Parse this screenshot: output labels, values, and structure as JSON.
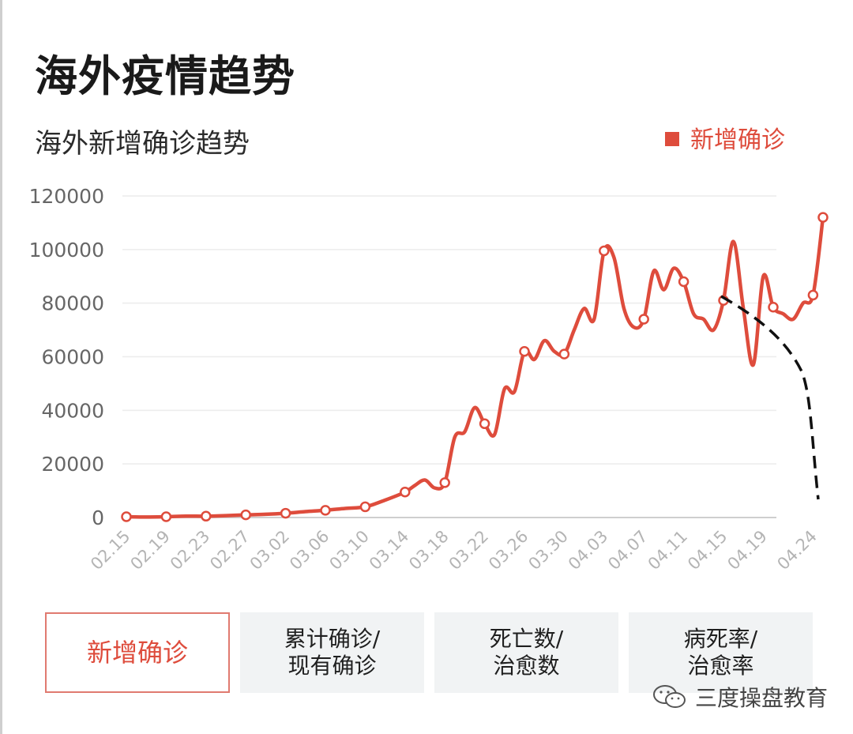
{
  "page_title": "海外疫情趋势",
  "chart_title": "海外新增确诊趋势",
  "legend": {
    "label": "新增确诊"
  },
  "colors": {
    "series": "#de4c3c",
    "grid": "#ececec",
    "axis_text": "#666666",
    "annotation": "#111111"
  },
  "chart_data": {
    "type": "line",
    "title": "海外新增确诊趋势",
    "xlabel": "",
    "ylabel": "",
    "ylim": [
      0,
      120000
    ],
    "yticks": [
      0,
      20000,
      40000,
      60000,
      80000,
      100000,
      120000
    ],
    "x_tick_labels": [
      "02.15",
      "02.19",
      "02.23",
      "02.27",
      "03.02",
      "03.06",
      "03.10",
      "03.14",
      "03.18",
      "03.22",
      "03.26",
      "03.30",
      "04.03",
      "04.07",
      "04.11",
      "04.15",
      "04.19",
      "04.24"
    ],
    "grid": true,
    "legend_position": "top-right",
    "series": [
      {
        "name": "新增确诊",
        "points": [
          [
            "02.15",
            300
          ],
          [
            "02.17",
            200
          ],
          [
            "02.19",
            300
          ],
          [
            "02.21",
            500
          ],
          [
            "02.23",
            500
          ],
          [
            "02.25",
            700
          ],
          [
            "02.27",
            1000
          ],
          [
            "02.29",
            1200
          ],
          [
            "03.02",
            1600
          ],
          [
            "03.04",
            2200
          ],
          [
            "03.06",
            2700
          ],
          [
            "03.08",
            3400
          ],
          [
            "03.10",
            4000
          ],
          [
            "03.12",
            6500
          ],
          [
            "03.14",
            9500
          ],
          [
            "03.15",
            12000
          ],
          [
            "03.16",
            14000
          ],
          [
            "03.17",
            11000
          ],
          [
            "03.18",
            13000
          ],
          [
            "03.19",
            30000
          ],
          [
            "03.20",
            32000
          ],
          [
            "03.21",
            41000
          ],
          [
            "03.22",
            35000
          ],
          [
            "03.23",
            31000
          ],
          [
            "03.24",
            48000
          ],
          [
            "03.25",
            47000
          ],
          [
            "03.26",
            62000
          ],
          [
            "03.27",
            59000
          ],
          [
            "03.28",
            66000
          ],
          [
            "03.29",
            62000
          ],
          [
            "03.30",
            61000
          ],
          [
            "03.31",
            70000
          ],
          [
            "04.01",
            78000
          ],
          [
            "04.02",
            74000
          ],
          [
            "04.03",
            99500
          ],
          [
            "04.04",
            97000
          ],
          [
            "04.05",
            78000
          ],
          [
            "04.06",
            71000
          ],
          [
            "04.07",
            74000
          ],
          [
            "04.08",
            92000
          ],
          [
            "04.09",
            85000
          ],
          [
            "04.10",
            93000
          ],
          [
            "04.11",
            88000
          ],
          [
            "04.12",
            76000
          ],
          [
            "04.13",
            74000
          ],
          [
            "04.14",
            70000
          ],
          [
            "04.15",
            81000
          ],
          [
            "04.16",
            103000
          ],
          [
            "04.17",
            78000
          ],
          [
            "04.18",
            57000
          ],
          [
            "04.19",
            90000
          ],
          [
            "04.20",
            78500
          ],
          [
            "04.21",
            76000
          ],
          [
            "04.22",
            74000
          ],
          [
            "04.23",
            80000
          ],
          [
            "04.24",
            83000
          ],
          [
            "04.25",
            112000
          ]
        ],
        "markers": [
          "02.15",
          "02.19",
          "02.23",
          "02.27",
          "03.02",
          "03.06",
          "03.10",
          "03.14",
          "03.18",
          "03.22",
          "03.26",
          "03.30",
          "04.03",
          "04.07",
          "04.11",
          "04.15",
          "04.20",
          "04.24",
          "04.25"
        ]
      }
    ]
  },
  "tabs": [
    {
      "label": "新增确诊",
      "active": true
    },
    {
      "label": "累计确诊/\n现有确诊",
      "active": false
    },
    {
      "label": "死亡数/\n治愈数",
      "active": false
    },
    {
      "label": "病死率/\n治愈率",
      "active": false
    }
  ],
  "watermark": {
    "icon": "wechat-icon",
    "text": "三度操盘教育"
  }
}
